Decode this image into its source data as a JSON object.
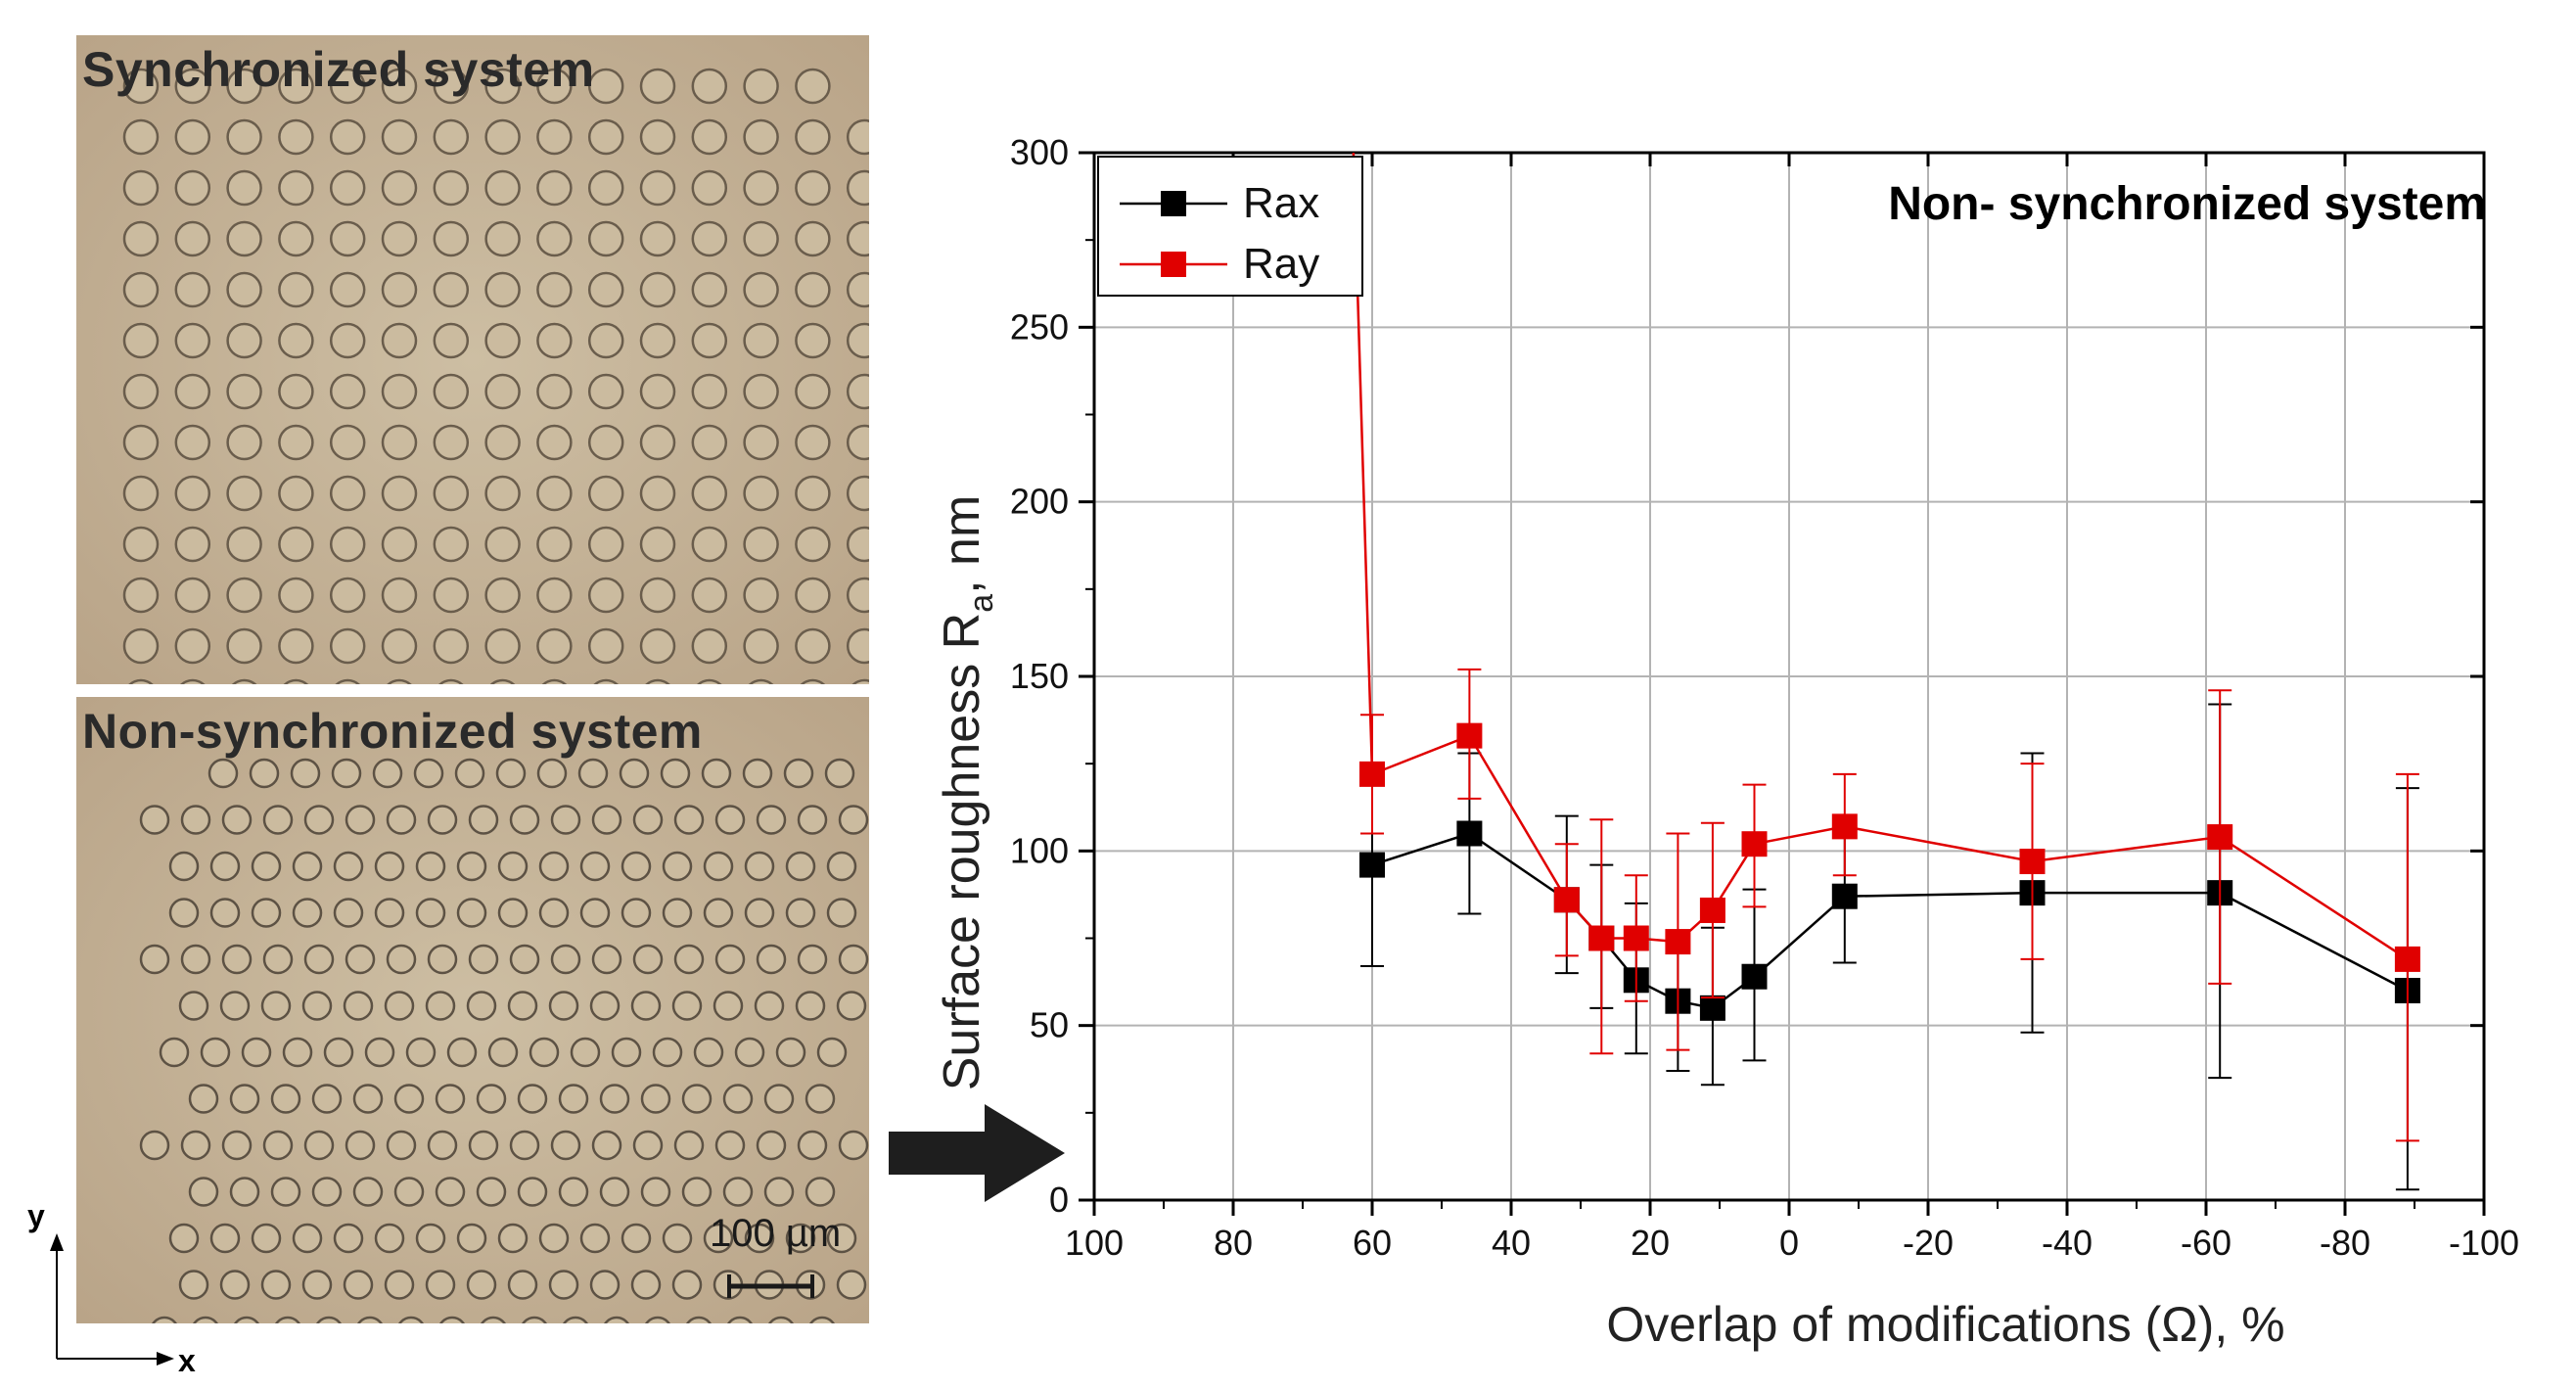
{
  "micrographs": {
    "top": {
      "title": "Synchronized system"
    },
    "bottom": {
      "title": "Non-synchronized system",
      "scale_bar": "100 µm"
    },
    "axes": {
      "x": "x",
      "y": "y"
    }
  },
  "chart_data": {
    "type": "line",
    "title": "Non- synchronized system",
    "xlabel": "Overlap of modifications (Ω), %",
    "ylabel_main": "Surface roughness R",
    "ylabel_sub": "a",
    "ylabel_suffix": ", nm",
    "xlim": [
      100,
      -100
    ],
    "ylim": [
      0,
      300
    ],
    "x_ticks": [
      100,
      80,
      60,
      40,
      20,
      0,
      -20,
      -40,
      -60,
      -80,
      -100
    ],
    "y_ticks": [
      0,
      50,
      100,
      150,
      200,
      250,
      300
    ],
    "grid": true,
    "legend_position": "top-left",
    "series": [
      {
        "name": "Rax",
        "color": "#000000",
        "points": [
          {
            "x": 60,
            "y": 96,
            "err_low": 67,
            "err_high": 124
          },
          {
            "x": 46,
            "y": 105,
            "err_low": 82,
            "err_high": 128
          },
          {
            "x": 32,
            "y": 86,
            "err_low": 65,
            "err_high": 110
          },
          {
            "x": 27,
            "y": 75,
            "err_low": 55,
            "err_high": 96
          },
          {
            "x": 22,
            "y": 63,
            "err_low": 42,
            "err_high": 85
          },
          {
            "x": 16,
            "y": 57,
            "err_low": 37,
            "err_high": 77
          },
          {
            "x": 11,
            "y": 55,
            "err_low": 33,
            "err_high": 78
          },
          {
            "x": 5,
            "y": 64,
            "err_low": 40,
            "err_high": 89
          },
          {
            "x": -8,
            "y": 87,
            "err_low": 68,
            "err_high": 108
          },
          {
            "x": -35,
            "y": 88,
            "err_low": 48,
            "err_high": 128
          },
          {
            "x": -62,
            "y": 88,
            "err_low": 35,
            "err_high": 142
          },
          {
            "x": -89,
            "y": 60,
            "err_low": 3,
            "err_high": 118
          }
        ]
      },
      {
        "name": "Ray",
        "color": "#e00000",
        "offscale_start": {
          "x": 63,
          "y": 320
        },
        "points": [
          {
            "x": 60,
            "y": 122,
            "err_low": 105,
            "err_high": 139
          },
          {
            "x": 46,
            "y": 133,
            "err_low": 115,
            "err_high": 152
          },
          {
            "x": 32,
            "y": 86,
            "err_low": 70,
            "err_high": 102
          },
          {
            "x": 27,
            "y": 75,
            "err_low": 42,
            "err_high": 109
          },
          {
            "x": 22,
            "y": 75,
            "err_low": 57,
            "err_high": 93
          },
          {
            "x": 16,
            "y": 74,
            "err_low": 43,
            "err_high": 105
          },
          {
            "x": 11,
            "y": 83,
            "err_low": 58,
            "err_high": 108
          },
          {
            "x": 5,
            "y": 102,
            "err_low": 84,
            "err_high": 119
          },
          {
            "x": -8,
            "y": 107,
            "err_low": 93,
            "err_high": 122
          },
          {
            "x": -35,
            "y": 97,
            "err_low": 69,
            "err_high": 125
          },
          {
            "x": -62,
            "y": 104,
            "err_low": 62,
            "err_high": 146
          },
          {
            "x": -89,
            "y": 69,
            "err_low": 17,
            "err_high": 122
          }
        ]
      }
    ]
  }
}
